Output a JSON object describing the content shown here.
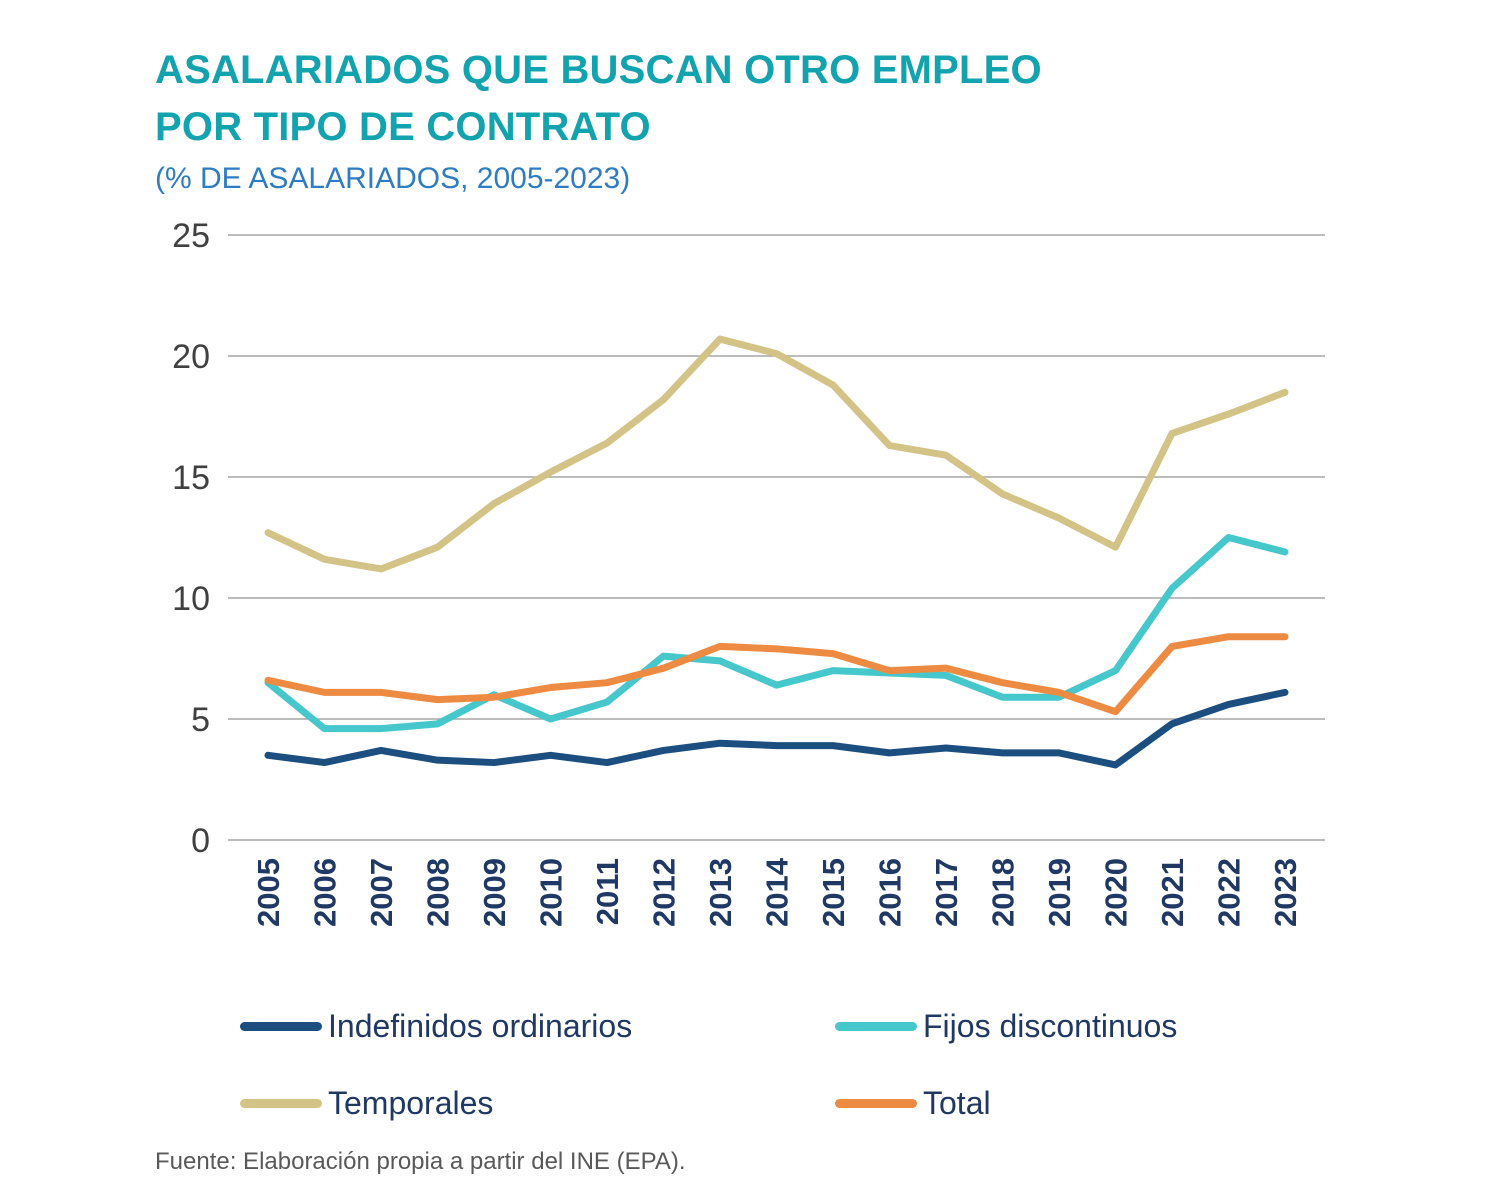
{
  "header": {
    "title_line1": "ASALARIADOS QUE BUSCAN OTRO EMPLEO",
    "title_line2": "POR TIPO DE CONTRATO",
    "subtitle": "(% DE ASALARIADOS, 2005-2023)",
    "title_color": "#12a3ae",
    "subtitle_color": "#2e7cc3"
  },
  "chart_data": {
    "type": "line",
    "title": "Asalariados que buscan otro empleo por tipo de contrato (% de asalariados, 2005-2023)",
    "xlabel": "",
    "ylabel": "",
    "ylim": [
      0,
      25
    ],
    "ytick_step": 5,
    "yticks": [
      0,
      5,
      10,
      15,
      20,
      25
    ],
    "grid": true,
    "legend_position": "bottom",
    "categories": [
      "2005",
      "2006",
      "2007",
      "2008",
      "2009",
      "2010",
      "2011",
      "2012",
      "2013",
      "2014",
      "2015",
      "2016",
      "2017",
      "2018",
      "2019",
      "2020",
      "2021",
      "2022",
      "2023"
    ],
    "series": [
      {
        "name": "Indefinidos ordinarios",
        "color": "#1c4e80",
        "values": [
          3.5,
          3.2,
          3.7,
          3.3,
          3.2,
          3.5,
          3.2,
          3.7,
          4.0,
          3.9,
          3.9,
          3.6,
          3.8,
          3.6,
          3.6,
          3.1,
          4.8,
          5.6,
          6.1
        ]
      },
      {
        "name": "Fijos discontinuos",
        "color": "#45c7cb",
        "values": [
          6.5,
          4.6,
          4.6,
          4.8,
          6.0,
          5.0,
          5.7,
          7.6,
          7.4,
          6.4,
          7.0,
          6.9,
          6.8,
          5.9,
          5.9,
          7.0,
          10.4,
          12.5,
          11.9
        ]
      },
      {
        "name": "Temporales",
        "color": "#d4c387",
        "values": [
          12.7,
          11.6,
          11.2,
          12.1,
          13.9,
          15.2,
          16.4,
          18.2,
          20.7,
          20.1,
          18.8,
          16.3,
          15.9,
          14.3,
          13.3,
          12.1,
          16.8,
          17.6,
          18.5
        ]
      },
      {
        "name": "Total",
        "color": "#ed8b43",
        "values": [
          6.6,
          6.1,
          6.1,
          5.8,
          5.9,
          6.3,
          6.5,
          7.1,
          8.0,
          7.9,
          7.7,
          7.0,
          7.1,
          6.5,
          6.1,
          5.3,
          8.0,
          8.4,
          8.4
        ]
      }
    ],
    "draw_order": [
      2,
      1,
      3,
      0
    ],
    "legend_order": [
      0,
      1,
      2,
      3
    ],
    "gridline_color": "#a6a6a6",
    "ytick_color": "#404040",
    "xtick_color": "#1f3864"
  },
  "footer": {
    "source": "Fuente: Elaboración propia a partir del INE (EPA)."
  }
}
